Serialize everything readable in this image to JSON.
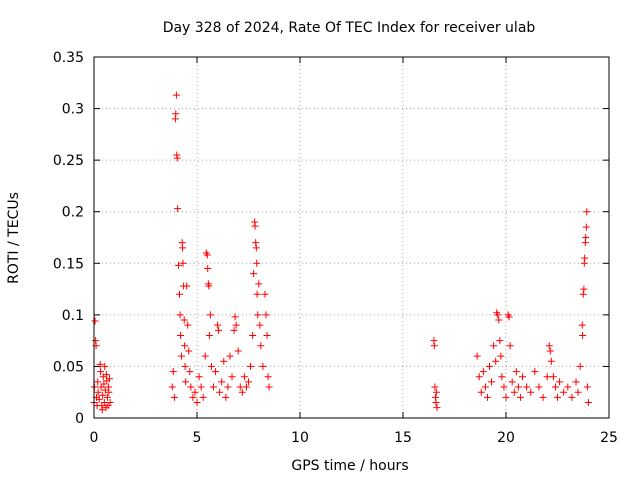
{
  "chart_data": {
    "type": "scatter",
    "title": "Day 328 of 2024, Rate Of TEC Index for receiver ulab",
    "xlabel": "GPS time / hours",
    "ylabel": "ROTI / TECUs",
    "xlim": [
      0,
      25
    ],
    "ylim": [
      0,
      0.35
    ],
    "xticks": [
      "0",
      "5",
      "10",
      "15",
      "20",
      "25"
    ],
    "yticks": [
      "0",
      "0.05",
      "0.1",
      "0.15",
      "0.2",
      "0.25",
      "0.3",
      "0.35"
    ],
    "grid": true,
    "marker": "plus",
    "color": "#ff0000",
    "series": [
      {
        "points": [
          [
            0.0,
            0.015
          ],
          [
            0.02,
            0.03
          ],
          [
            0.05,
            0.094
          ],
          [
            0.08,
            0.075
          ],
          [
            0.1,
            0.07
          ],
          [
            0.12,
            0.02
          ],
          [
            0.15,
            0.012
          ],
          [
            0.18,
            0.035
          ],
          [
            0.2,
            0.025
          ],
          [
            0.25,
            0.018
          ],
          [
            0.3,
            0.052
          ],
          [
            0.32,
            0.045
          ],
          [
            0.35,
            0.03
          ],
          [
            0.38,
            0.012
          ],
          [
            0.4,
            0.008
          ],
          [
            0.42,
            0.022
          ],
          [
            0.45,
            0.04
          ],
          [
            0.48,
            0.033
          ],
          [
            0.5,
            0.015
          ],
          [
            0.52,
            0.05
          ],
          [
            0.55,
            0.027
          ],
          [
            0.58,
            0.01
          ],
          [
            0.6,
            0.042
          ],
          [
            0.62,
            0.036
          ],
          [
            0.65,
            0.02
          ],
          [
            0.68,
            0.012
          ],
          [
            0.7,
            0.03
          ],
          [
            0.72,
            0.025
          ],
          [
            0.75,
            0.038
          ],
          [
            0.78,
            0.015
          ],
          [
            3.8,
            0.03
          ],
          [
            3.85,
            0.045
          ],
          [
            3.9,
            0.02
          ],
          [
            3.95,
            0.29
          ],
          [
            3.97,
            0.295
          ],
          [
            4.0,
            0.313
          ],
          [
            4.02,
            0.255
          ],
          [
            4.04,
            0.252
          ],
          [
            4.06,
            0.203
          ],
          [
            4.1,
            0.148
          ],
          [
            4.15,
            0.12
          ],
          [
            4.18,
            0.1
          ],
          [
            4.2,
            0.08
          ],
          [
            4.25,
            0.06
          ],
          [
            4.28,
            0.17
          ],
          [
            4.3,
            0.165
          ],
          [
            4.32,
            0.15
          ],
          [
            4.35,
            0.128
          ],
          [
            4.38,
            0.095
          ],
          [
            4.4,
            0.07
          ],
          [
            4.42,
            0.05
          ],
          [
            4.45,
            0.035
          ],
          [
            4.5,
            0.128
          ],
          [
            4.55,
            0.09
          ],
          [
            4.6,
            0.065
          ],
          [
            4.65,
            0.045
          ],
          [
            4.7,
            0.03
          ],
          [
            4.8,
            0.02
          ],
          [
            4.9,
            0.025
          ],
          [
            5.0,
            0.015
          ],
          [
            5.1,
            0.04
          ],
          [
            5.2,
            0.03
          ],
          [
            5.3,
            0.02
          ],
          [
            5.4,
            0.06
          ],
          [
            5.45,
            0.16
          ],
          [
            5.5,
            0.158
          ],
          [
            5.52,
            0.145
          ],
          [
            5.55,
            0.13
          ],
          [
            5.58,
            0.128
          ],
          [
            5.6,
            0.08
          ],
          [
            5.65,
            0.1
          ],
          [
            5.7,
            0.05
          ],
          [
            5.8,
            0.03
          ],
          [
            5.9,
            0.045
          ],
          [
            6.0,
            0.09
          ],
          [
            6.05,
            0.085
          ],
          [
            6.1,
            0.025
          ],
          [
            6.2,
            0.035
          ],
          [
            6.3,
            0.055
          ],
          [
            6.4,
            0.02
          ],
          [
            6.5,
            0.03
          ],
          [
            6.6,
            0.06
          ],
          [
            6.7,
            0.04
          ],
          [
            6.8,
            0.085
          ],
          [
            6.85,
            0.098
          ],
          [
            6.9,
            0.09
          ],
          [
            7.0,
            0.065
          ],
          [
            7.1,
            0.03
          ],
          [
            7.2,
            0.025
          ],
          [
            7.3,
            0.04
          ],
          [
            7.4,
            0.03
          ],
          [
            7.5,
            0.035
          ],
          [
            7.6,
            0.05
          ],
          [
            7.7,
            0.08
          ],
          [
            7.75,
            0.14
          ],
          [
            7.8,
            0.19
          ],
          [
            7.82,
            0.186
          ],
          [
            7.85,
            0.17
          ],
          [
            7.88,
            0.165
          ],
          [
            7.9,
            0.15
          ],
          [
            7.92,
            0.12
          ],
          [
            7.95,
            0.1
          ],
          [
            8.0,
            0.13
          ],
          [
            8.05,
            0.09
          ],
          [
            8.1,
            0.07
          ],
          [
            8.2,
            0.05
          ],
          [
            8.3,
            0.12
          ],
          [
            8.35,
            0.1
          ],
          [
            8.4,
            0.08
          ],
          [
            8.45,
            0.04
          ],
          [
            8.5,
            0.03
          ],
          [
            16.5,
            0.075
          ],
          [
            16.52,
            0.07
          ],
          [
            16.55,
            0.03
          ],
          [
            16.58,
            0.02
          ],
          [
            16.6,
            0.015
          ],
          [
            16.62,
            0.025
          ],
          [
            16.65,
            0.01
          ],
          [
            18.6,
            0.06
          ],
          [
            18.7,
            0.04
          ],
          [
            18.8,
            0.025
          ],
          [
            18.9,
            0.045
          ],
          [
            19.0,
            0.03
          ],
          [
            19.1,
            0.02
          ],
          [
            19.2,
            0.05
          ],
          [
            19.3,
            0.035
          ],
          [
            19.4,
            0.07
          ],
          [
            19.5,
            0.055
          ],
          [
            19.55,
            0.102
          ],
          [
            19.6,
            0.1
          ],
          [
            19.65,
            0.095
          ],
          [
            19.7,
            0.075
          ],
          [
            19.75,
            0.06
          ],
          [
            19.8,
            0.04
          ],
          [
            19.9,
            0.03
          ],
          [
            20.0,
            0.02
          ],
          [
            20.1,
            0.1
          ],
          [
            20.15,
            0.098
          ],
          [
            20.2,
            0.07
          ],
          [
            20.3,
            0.035
          ],
          [
            20.4,
            0.025
          ],
          [
            20.5,
            0.045
          ],
          [
            20.6,
            0.03
          ],
          [
            20.7,
            0.02
          ],
          [
            20.8,
            0.04
          ],
          [
            21.0,
            0.03
          ],
          [
            21.2,
            0.025
          ],
          [
            21.4,
            0.045
          ],
          [
            21.6,
            0.03
          ],
          [
            21.8,
            0.02
          ],
          [
            22.0,
            0.04
          ],
          [
            22.1,
            0.07
          ],
          [
            22.15,
            0.065
          ],
          [
            22.2,
            0.055
          ],
          [
            22.3,
            0.04
          ],
          [
            22.4,
            0.03
          ],
          [
            22.5,
            0.02
          ],
          [
            22.6,
            0.035
          ],
          [
            22.8,
            0.025
          ],
          [
            23.0,
            0.03
          ],
          [
            23.2,
            0.02
          ],
          [
            23.4,
            0.035
          ],
          [
            23.5,
            0.025
          ],
          [
            23.6,
            0.05
          ],
          [
            23.7,
            0.09
          ],
          [
            23.72,
            0.08
          ],
          [
            23.75,
            0.12
          ],
          [
            23.78,
            0.125
          ],
          [
            23.8,
            0.15
          ],
          [
            23.82,
            0.155
          ],
          [
            23.85,
            0.17
          ],
          [
            23.87,
            0.175
          ],
          [
            23.9,
            0.185
          ],
          [
            23.92,
            0.2
          ],
          [
            23.95,
            0.03
          ],
          [
            24.0,
            0.015
          ]
        ]
      }
    ]
  }
}
